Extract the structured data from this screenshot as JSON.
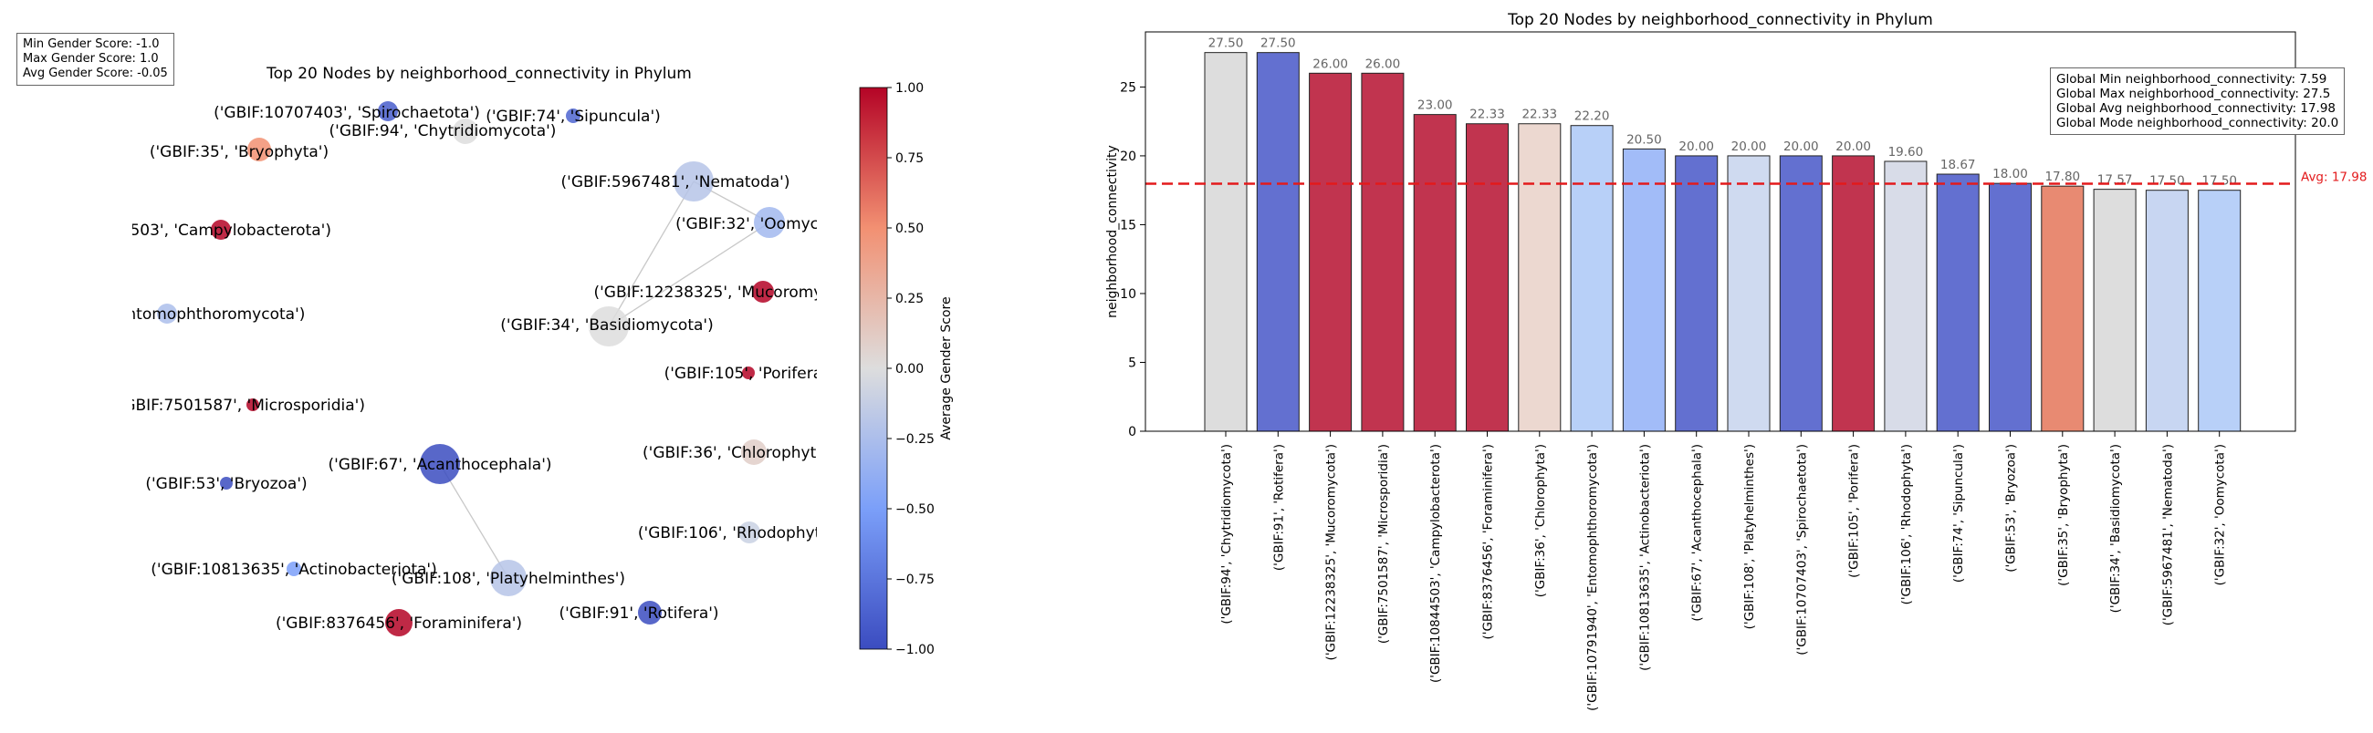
{
  "left_stats": [
    "Min Gender Score: -1.0",
    "Max Gender Score: 1.0",
    "Avg Gender Score: -0.05"
  ],
  "right_stats": [
    "Global Min neighborhood_connectivity: 7.59",
    "Global Max neighborhood_connectivity: 27.5",
    "Global Avg neighborhood_connectivity: 17.98",
    "Global Mode neighborhood_connectivity: 20.0"
  ],
  "colorbar": {
    "label": "Average Gender Score",
    "ticks": [
      "1.00",
      "0.75",
      "0.50",
      "0.25",
      "0.00",
      "−0.25",
      "−0.50",
      "−0.75",
      "−1.00"
    ],
    "colormap": "coolwarm"
  },
  "chart_data": [
    {
      "type": "network",
      "title": "Top 20 Nodes by neighborhood_connectivity in Phylum",
      "nodes": [
        {
          "label": "('GBIF:10707403', 'Spirochaetota')",
          "score": -0.9
        },
        {
          "label": "('GBIF:94', 'Chytridiomycota')",
          "score": 0.0
        },
        {
          "label": "('GBIF:74', 'Sipuncula')",
          "score": -0.85
        },
        {
          "label": "('GBIF:35', 'Bryophyta')",
          "score": 0.5
        },
        {
          "label": "('GBIF:5967481', 'Nematoda')",
          "score": -0.2
        },
        {
          "label": "('GBIF:32', 'Oomycota')",
          "score": -0.3
        },
        {
          "label": "('GBIF:10844503', 'Campylobacterota')",
          "score": 1.0
        },
        {
          "label": "('GBIF:12238325', 'Mucoromycota')",
          "score": 1.0
        },
        {
          "label": "('GBIF:10791940', 'Entomophthoromycota')",
          "score": -0.25
        },
        {
          "label": "('GBIF:34', 'Basidiomycota')",
          "score": 0.0
        },
        {
          "label": "('GBIF:105', 'Porifera')",
          "score": 1.0
        },
        {
          "label": "('GBIF:7501587', 'Microsporidia')",
          "score": 1.0
        },
        {
          "label": "('GBIF:67', 'Acanthocephala')",
          "score": -1.0
        },
        {
          "label": "('GBIF:36', 'Chlorophyta')",
          "score": 0.1
        },
        {
          "label": "('GBIF:53', 'Bryozoa')",
          "score": -1.0
        },
        {
          "label": "('GBIF:106', 'Rhodophyta')",
          "score": -0.1
        },
        {
          "label": "('GBIF:10813635', 'Actinobacteriota')",
          "score": -0.5
        },
        {
          "label": "('GBIF:108', 'Platyhelminthes')",
          "score": -0.2
        },
        {
          "label": "('GBIF:8376456', 'Foraminifera')",
          "score": 1.0
        },
        {
          "label": "('GBIF:91', 'Rotifera')",
          "score": -1.0
        }
      ],
      "edges": [
        [
          "('GBIF:5967481', 'Nematoda')",
          "('GBIF:32', 'Oomycota')"
        ],
        [
          "('GBIF:5967481', 'Nematoda')",
          "('GBIF:34', 'Basidiomycota')"
        ],
        [
          "('GBIF:32', 'Oomycota')",
          "('GBIF:34', 'Basidiomycota')"
        ],
        [
          "('GBIF:67', 'Acanthocephala')",
          "('GBIF:108', 'Platyhelminthes')"
        ]
      ]
    },
    {
      "type": "bar",
      "title": "Top 20 Nodes by neighborhood_connectivity in Phylum",
      "xlabel": "",
      "ylabel": "neighborhood_connectivity",
      "ylim": [
        0,
        29
      ],
      "yticks": [
        0,
        5,
        10,
        15,
        20,
        25
      ],
      "categories": [
        "('GBIF:94', 'Chytridiomycota')",
        "('GBIF:91', 'Rotifera')",
        "('GBIF:12238325', 'Mucoromycota')",
        "('GBIF:7501587', 'Microsporidia')",
        "('GBIF:10844503', 'Campylobacterota')",
        "('GBIF:8376456', 'Foraminifera')",
        "('GBIF:36', 'Chlorophyta')",
        "('GBIF:10791940', 'Entomophthoromycota')",
        "('GBIF:10813635', 'Actinobacteriota')",
        "('GBIF:67', 'Acanthocephala')",
        "('GBIF:108', 'Platyhelminthes')",
        "('GBIF:10707403', 'Spirochaetota')",
        "('GBIF:105', 'Porifera')",
        "('GBIF:106', 'Rhodophyta')",
        "('GBIF:74', 'Sipuncula')",
        "('GBIF:53', 'Bryozoa')",
        "('GBIF:35', 'Bryophyta')",
        "('GBIF:34', 'Basidiomycota')",
        "('GBIF:5967481', 'Nematoda')",
        "('GBIF:32', 'Oomycota')"
      ],
      "values": [
        27.5,
        27.5,
        26.0,
        26.0,
        23.0,
        22.33,
        22.33,
        22.2,
        20.5,
        20.0,
        20.0,
        20.0,
        20.0,
        19.6,
        18.67,
        18.0,
        17.8,
        17.57,
        17.5,
        17.5
      ],
      "value_labels": [
        "27.50",
        "27.50",
        "26.00",
        "26.00",
        "23.00",
        "22.33",
        "22.33",
        "22.20",
        "20.50",
        "20.00",
        "20.00",
        "20.00",
        "20.00",
        "19.60",
        "18.67",
        "18.00",
        "17.80",
        "17.57",
        "17.50",
        "17.50"
      ],
      "colors": [
        "#dddddd",
        "#6370d0",
        "#c1344f",
        "#c1344f",
        "#c1344f",
        "#c1344f",
        "#ecd8d0",
        "#b8d0f8",
        "#a2bcf8",
        "#6370d0",
        "#cfdaf0",
        "#6370d0",
        "#c1344f",
        "#d8dce8",
        "#6370d0",
        "#6370d0",
        "#e88a72",
        "#dddddd",
        "#c8d6f2",
        "#b8d0f8"
      ],
      "avg_line": {
        "value": 17.98,
        "label": "Avg: 17.98",
        "color": "#e31a1c"
      }
    }
  ]
}
